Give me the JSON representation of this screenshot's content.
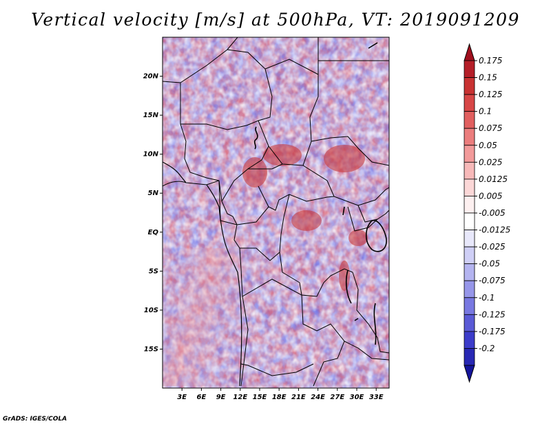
{
  "title": "Vertical velocity [m/s] at 500hPa, VT: 2019091209",
  "credit": "GrADS: IGES/COLA",
  "map": {
    "variable": "Vertical velocity",
    "units": "m/s",
    "level": "500hPa",
    "valid_time": "2019091209",
    "region": "Central Africa",
    "lon_range_deg": [
      0,
      35
    ],
    "lat_range_deg": [
      -20,
      25
    ]
  },
  "lat_ticks": [
    {
      "label": "20N",
      "lat": 20
    },
    {
      "label": "15N",
      "lat": 15
    },
    {
      "label": "10N",
      "lat": 10
    },
    {
      "label": "5N",
      "lat": 5
    },
    {
      "label": "EQ",
      "lat": 0
    },
    {
      "label": "5S",
      "lat": -5
    },
    {
      "label": "10S",
      "lat": -10
    },
    {
      "label": "15S",
      "lat": -15
    }
  ],
  "lon_ticks": [
    {
      "label": "3E",
      "lon": 3
    },
    {
      "label": "6E",
      "lon": 6
    },
    {
      "label": "9E",
      "lon": 9
    },
    {
      "label": "12E",
      "lon": 12
    },
    {
      "label": "15E",
      "lon": 15
    },
    {
      "label": "18E",
      "lon": 18
    },
    {
      "label": "21E",
      "lon": 21
    },
    {
      "label": "24E",
      "lon": 24
    },
    {
      "label": "27E",
      "lon": 27
    },
    {
      "label": "30E",
      "lon": 30
    },
    {
      "label": "33E",
      "lon": 33
    }
  ],
  "colorbar": {
    "labels": [
      "0.175",
      "0.15",
      "0.125",
      "0.1",
      "0.075",
      "0.05",
      "0.025",
      "0.0125",
      "0.005",
      "-0.005",
      "-0.0125",
      "-0.025",
      "-0.05",
      "-0.075",
      "-0.1",
      "-0.125",
      "-0.175",
      "-0.2"
    ],
    "colors": [
      "#a00f1e",
      "#b41e28",
      "#c83232",
      "#d74646",
      "#e15f5f",
      "#eb7d7d",
      "#f29a9a",
      "#f7b9b9",
      "#fbd7d7",
      "#fdf0f0",
      "#ffffff",
      "#e8e8fb",
      "#cfcff6",
      "#b4b4f0",
      "#9696e9",
      "#7878e1",
      "#5a5ad6",
      "#3c3cca",
      "#2828b4",
      "#14149b"
    ]
  }
}
